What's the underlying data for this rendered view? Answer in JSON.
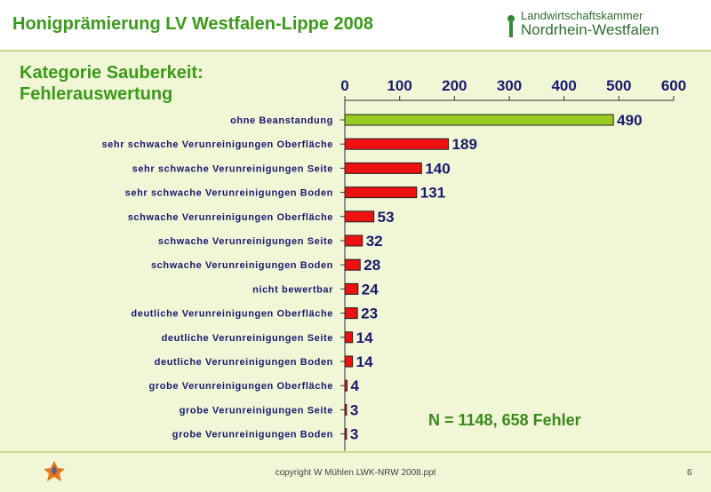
{
  "header": {
    "title": "Honigprämierung LV Westfalen-Lippe 2008",
    "logo_line1": "Landwirtschaftskammer",
    "logo_line2": "Nordrhein-Westfalen"
  },
  "footer": {
    "copyright": "copyright W Mühlen LWK-NRW 2008.ppt",
    "page_number": "6"
  },
  "annotation": "N = 1148, 658 Fehler",
  "colors": {
    "first_bar": "#99cc22",
    "bars": "#ee1111",
    "title_green": "#3a9a1a"
  },
  "chart_data": {
    "type": "bar",
    "orientation": "horizontal",
    "title_line1": "Kategorie Sauberkeit:",
    "title_line2": "Fehlerauswertung",
    "xlim": [
      0,
      600
    ],
    "xticks": [
      "0",
      "100",
      "200",
      "300",
      "400",
      "500",
      "600"
    ],
    "categories": [
      "ohne Beanstandung",
      "sehr schwache Verunreinigungen Oberfläche",
      "sehr schwache Verunreinigungen Seite",
      "sehr schwache Verunreinigungen Boden",
      "schwache Verunreinigungen Oberfläche",
      "schwache Verunreinigungen Seite",
      "schwache Verunreinigungen Boden",
      "nicht bewertbar",
      "deutliche Verunreinigungen Oberfläche",
      "deutliche Verunreinigungen Seite",
      "deutliche Verunreinigungen Boden",
      "grobe Verunreinigungen Oberfläche",
      "grobe Verunreinigungen Seite",
      "grobe Verunreinigungen Boden"
    ],
    "values": [
      490,
      189,
      140,
      131,
      53,
      32,
      28,
      24,
      23,
      14,
      14,
      4,
      3,
      3
    ],
    "grid": false,
    "axis_position": "top"
  }
}
